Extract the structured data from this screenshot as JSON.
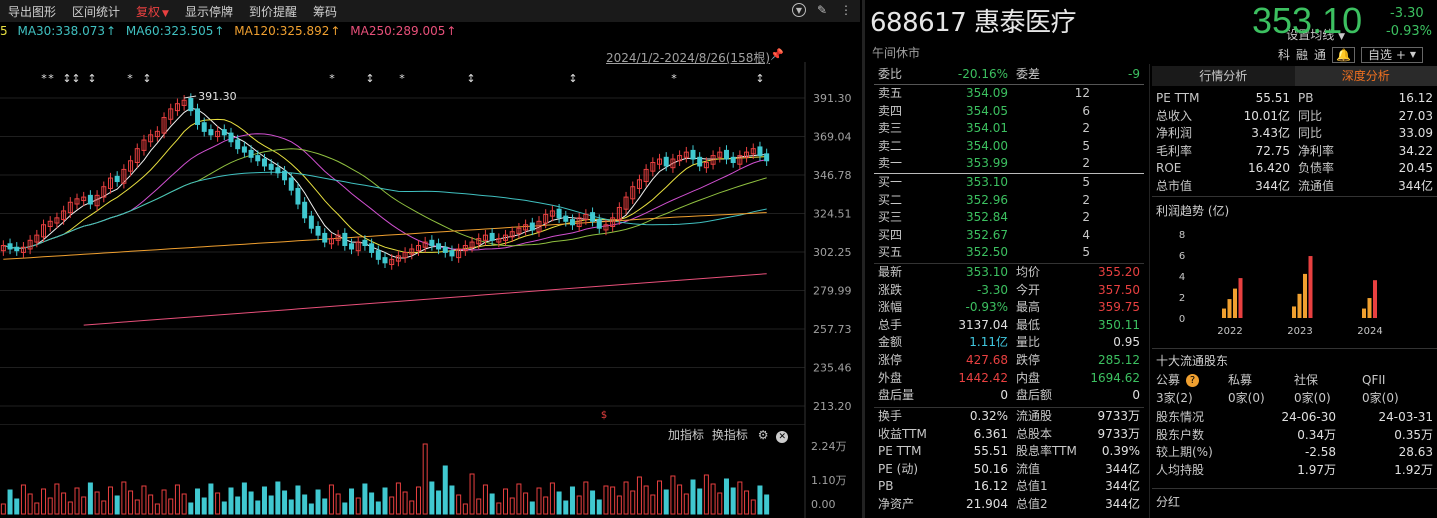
{
  "toolbar": {
    "items": [
      "导出图形",
      "区间统计",
      "复权",
      "显示停牌",
      "到价提醒",
      "筹码"
    ]
  },
  "ma_bar": {
    "lead": "5",
    "items": [
      {
        "label": "MA30:338.073",
        "color": "#40c0c0"
      },
      {
        "label": "MA60:323.505",
        "color": "#40c0c0"
      },
      {
        "label": "MA120:325.892",
        "color": "#f0a030"
      },
      {
        "label": "MA250:289.005",
        "color": "#e8507a"
      }
    ],
    "setting": "设置均线"
  },
  "chart": {
    "date_range": "2024/1/2-2024/8/26(158根)",
    "high_label": "391.30",
    "y_labels": [
      "391.30",
      "369.04",
      "346.78",
      "324.51",
      "302.25",
      "279.99",
      "257.73",
      "235.46",
      "213.20"
    ],
    "dollar_mark": "$",
    "vol_labels": [
      "2.24万",
      "1.10万",
      "0.00"
    ],
    "vol_tools": [
      "加指标",
      "换指标"
    ]
  },
  "chart_data": {
    "type": "candlestick",
    "ylim": [
      213.2,
      391.3
    ],
    "candles_trend": [
      306,
      304,
      303,
      305,
      309,
      312,
      318,
      320,
      322,
      326,
      331,
      333,
      334,
      330,
      335,
      340,
      345,
      343,
      350,
      355,
      362,
      367,
      370,
      372,
      380,
      385,
      388,
      390,
      384,
      376,
      372,
      370,
      372,
      370,
      366,
      362,
      360,
      357,
      355,
      352,
      350,
      348,
      344,
      338,
      330,
      322,
      316,
      312,
      308,
      310,
      312,
      306,
      304,
      308,
      306,
      302,
      298,
      296,
      298,
      300,
      302,
      304,
      306,
      308,
      306,
      304,
      302,
      300,
      304,
      306,
      308,
      310,
      312,
      309,
      310,
      312,
      314,
      316,
      318,
      315,
      320,
      324,
      326,
      322,
      320,
      318,
      322,
      324,
      320,
      316,
      318,
      322,
      328,
      334,
      340,
      344,
      350,
      354,
      356,
      352,
      356,
      358,
      360,
      356,
      352,
      354,
      358,
      360,
      356,
      354,
      358,
      360,
      362,
      358,
      355
    ]
  },
  "stock": {
    "code_name": "688617 惠泰医疗",
    "status": "午间休市",
    "price": "353.10",
    "chg_abs": "-3.30",
    "chg_pct": "-0.93%",
    "tags": [
      "科",
      "融",
      "通"
    ],
    "watch": "自选 +"
  },
  "orderbook": {
    "weibi_label": "委比",
    "weibi": "-20.16%",
    "weicha_label": "委差",
    "weicha": "-9",
    "asks": [
      {
        "label": "卖五",
        "price": "354.09",
        "vol": "12"
      },
      {
        "label": "卖四",
        "price": "354.05",
        "vol": "6"
      },
      {
        "label": "卖三",
        "price": "354.01",
        "vol": "2"
      },
      {
        "label": "卖二",
        "price": "354.00",
        "vol": "5"
      },
      {
        "label": "卖一",
        "price": "353.99",
        "vol": "2"
      }
    ],
    "bids": [
      {
        "label": "买一",
        "price": "353.10",
        "vol": "5"
      },
      {
        "label": "买二",
        "price": "352.96",
        "vol": "2"
      },
      {
        "label": "买三",
        "price": "352.84",
        "vol": "2"
      },
      {
        "label": "买四",
        "price": "352.67",
        "vol": "4"
      },
      {
        "label": "买五",
        "price": "352.50",
        "vol": "5"
      }
    ],
    "stats": [
      {
        "l1": "最新",
        "v1": "353.10",
        "c1": "green",
        "l2": "均价",
        "v2": "355.20",
        "c2": "red"
      },
      {
        "l1": "涨跌",
        "v1": "-3.30",
        "c1": "green",
        "l2": "今开",
        "v2": "357.50",
        "c2": "red"
      },
      {
        "l1": "涨幅",
        "v1": "-0.93%",
        "c1": "green",
        "l2": "最高",
        "v2": "359.75",
        "c2": "red"
      },
      {
        "l1": "总手",
        "v1": "3137.04",
        "c1": "white",
        "l2": "最低",
        "v2": "350.11",
        "c2": "green"
      },
      {
        "l1": "金额",
        "v1": "1.11亿",
        "c1": "cyan",
        "l2": "量比",
        "v2": "0.95",
        "c2": "white"
      },
      {
        "l1": "涨停",
        "v1": "427.68",
        "c1": "red",
        "l2": "跌停",
        "v2": "285.12",
        "c2": "green"
      },
      {
        "l1": "外盘",
        "v1": "1442.42",
        "c1": "red",
        "l2": "内盘",
        "v2": "1694.62",
        "c2": "green"
      },
      {
        "l1": "盘后量",
        "v1": "0",
        "c1": "white",
        "l2": "盘后额",
        "v2": "0",
        "c2": "white"
      }
    ],
    "stats2": [
      {
        "l1": "换手",
        "v1": "0.32%",
        "l2": "流通股",
        "v2": "9733万"
      },
      {
        "l1": "收益TTM",
        "v1": "6.361",
        "l2": "总股本",
        "v2": "9733万"
      },
      {
        "l1": "PE TTM",
        "v1": "55.51",
        "l2": "股息率TTM",
        "v2": "0.39%"
      },
      {
        "l1": "PE (动)",
        "v1": "50.16",
        "l2": "流值",
        "v2": "344亿"
      },
      {
        "l1": "PB",
        "v1": "16.12",
        "l2": "总值1",
        "v2": "344亿"
      },
      {
        "l1": "净资产",
        "v1": "21.904",
        "l2": "总值2",
        "v2": "344亿"
      }
    ]
  },
  "analysis": {
    "tabs": [
      "行情分析",
      "深度分析"
    ],
    "rows": [
      {
        "l1": "PE TTM",
        "v1": "55.51",
        "l2": "PB",
        "v2": "16.12"
      },
      {
        "l1": "总收入",
        "v1": "10.01亿",
        "l2": "同比",
        "v2": "27.03"
      },
      {
        "l1": "净利润",
        "v1": "3.43亿",
        "l2": "同比",
        "v2": "33.09"
      },
      {
        "l1": "毛利率",
        "v1": "72.75",
        "l2": "净利率",
        "v2": "34.22"
      },
      {
        "l1": "ROE",
        "v1": "16.420",
        "l2": "负债率",
        "v2": "20.45"
      },
      {
        "l1": "总市值",
        "v1": "344亿",
        "l2": "流通值",
        "v2": "344亿"
      }
    ],
    "profit_title": "利润趋势 (亿)",
    "profit_y": [
      "8",
      "6",
      "4",
      "2",
      "0"
    ],
    "profit_years": [
      "2022",
      "2023",
      "2024"
    ],
    "profit_bars": [
      [
        0.9,
        1.8,
        2.8,
        3.8
      ],
      [
        1.1,
        2.3,
        4.2,
        5.9
      ],
      [
        0.9,
        1.9,
        3.6
      ]
    ],
    "shareholder_title": "十大流通股东",
    "sh_header": [
      "公募",
      "私募",
      "社保",
      "QFII"
    ],
    "sh_values": [
      "3家(2)",
      "0家(0)",
      "0家(0)",
      "0家(0)"
    ],
    "sh_rows": [
      {
        "l": "股东情况",
        "a": "24-06-30",
        "b": "24-03-31"
      },
      {
        "l": "股东户数",
        "a": "0.34万",
        "b": "0.35万"
      },
      {
        "l": "较上期(%)",
        "a": "-2.58",
        "b": "28.63"
      },
      {
        "l": "人均持股",
        "a": "1.97万",
        "b": "1.92万"
      }
    ],
    "dividend": "分红"
  }
}
